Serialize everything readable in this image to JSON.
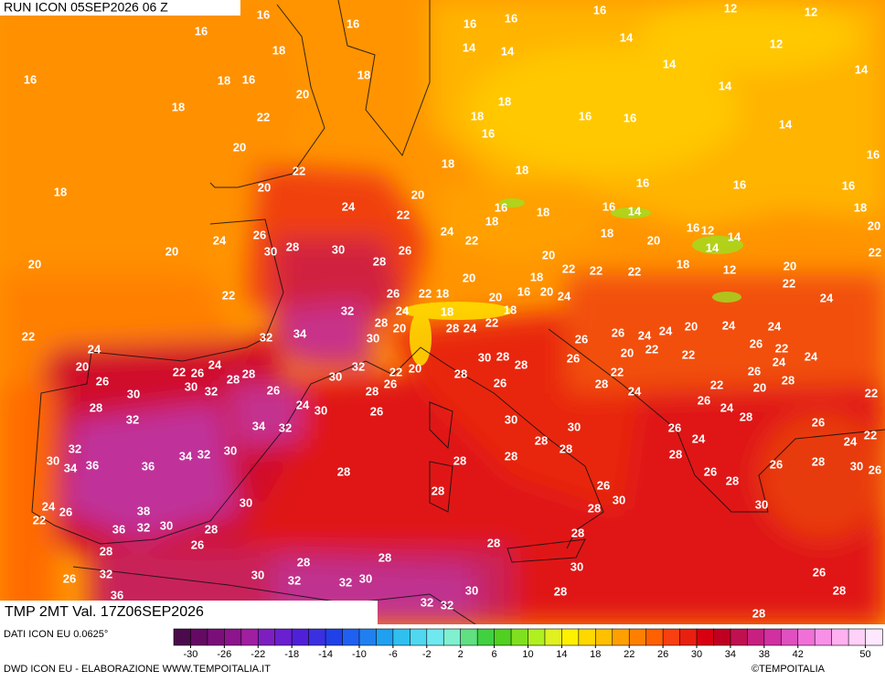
{
  "header": {
    "run": "RUN ICON 05SEP2026 06 Z",
    "field": "TMP 2MT Val. 17Z06SEP2026"
  },
  "footer": {
    "source": "DATI ICON EU 0.0625°",
    "credit": "DWD ICON EU - ELABORAZIONE WWW.TEMPOITALIA.IT",
    "copyright": "©TEMPOITALIA"
  },
  "colorbar": {
    "range": [
      -32,
      52
    ],
    "ticks": [
      -30,
      -26,
      -22,
      -18,
      -14,
      -10,
      -6,
      -2,
      2,
      6,
      10,
      14,
      18,
      22,
      26,
      30,
      34,
      38,
      42,
      50
    ],
    "colors": [
      "#4b0a4b",
      "#640a64",
      "#7a0f7a",
      "#8c148c",
      "#a01ea0",
      "#7d1fc0",
      "#6a1fd0",
      "#5020d8",
      "#3a30e0",
      "#2040e8",
      "#2060f0",
      "#2080f0",
      "#20a0f0",
      "#30c0f0",
      "#50d8f0",
      "#70e8f0",
      "#80f0d0",
      "#60e080",
      "#40d040",
      "#50d020",
      "#80e020",
      "#b0f020",
      "#e0f020",
      "#fff000",
      "#ffd800",
      "#ffc000",
      "#ffa000",
      "#ff8000",
      "#ff6000",
      "#f84010",
      "#e82010",
      "#d80010",
      "#c00020",
      "#c01050",
      "#c82080",
      "#d030a0",
      "#e050c0",
      "#f070d8",
      "#f890e8",
      "#ffb0f0",
      "#ffd0f8",
      "#ffe8ff"
    ]
  },
  "map_labels": [
    16,
    16,
    16,
    16,
    18,
    18,
    16,
    20,
    18,
    18,
    22,
    20,
    22,
    20,
    18,
    20,
    20,
    22,
    22,
    24,
    26,
    30,
    28,
    30,
    24,
    22,
    20,
    28,
    26,
    18,
    18,
    16,
    18,
    16,
    16,
    14,
    14,
    16,
    14,
    14,
    12,
    12,
    12,
    14,
    14,
    16,
    16,
    14,
    16,
    18,
    16,
    18,
    18,
    16,
    14,
    16,
    16,
    16,
    18,
    20,
    22,
    16,
    12,
    14,
    14,
    18,
    20,
    18,
    12,
    20,
    22,
    24,
    24,
    22,
    20,
    22,
    22,
    22,
    18,
    20,
    24,
    20,
    22,
    18,
    26,
    20,
    16,
    18,
    18,
    24,
    28,
    32,
    34,
    32,
    30,
    20,
    28,
    24,
    22,
    24,
    20,
    22,
    26,
    24,
    30,
    32,
    28,
    28,
    26,
    30,
    32,
    22,
    20,
    26,
    28,
    24,
    30,
    26,
    26,
    30,
    28,
    32,
    34,
    32,
    32,
    30,
    34,
    36,
    36,
    34,
    32,
    30,
    24,
    26,
    22,
    38,
    36,
    32,
    30,
    28,
    26,
    28,
    26,
    32,
    36,
    30,
    28,
    32,
    32,
    30,
    28,
    28,
    28,
    30,
    28,
    28,
    26,
    30,
    30,
    28,
    28,
    28,
    28,
    26,
    30,
    28,
    28,
    28,
    30,
    28,
    30,
    32,
    32,
    28,
    30,
    26,
    26,
    20,
    22,
    24,
    20,
    24,
    24,
    26,
    22,
    24,
    24,
    26,
    22,
    24,
    26,
    22,
    28,
    24,
    22,
    20,
    28,
    26,
    24,
    28,
    26,
    24,
    28,
    26,
    28,
    26,
    26,
    22,
    22,
    24,
    28,
    30,
    26,
    30,
    26,
    28,
    28
  ]
}
